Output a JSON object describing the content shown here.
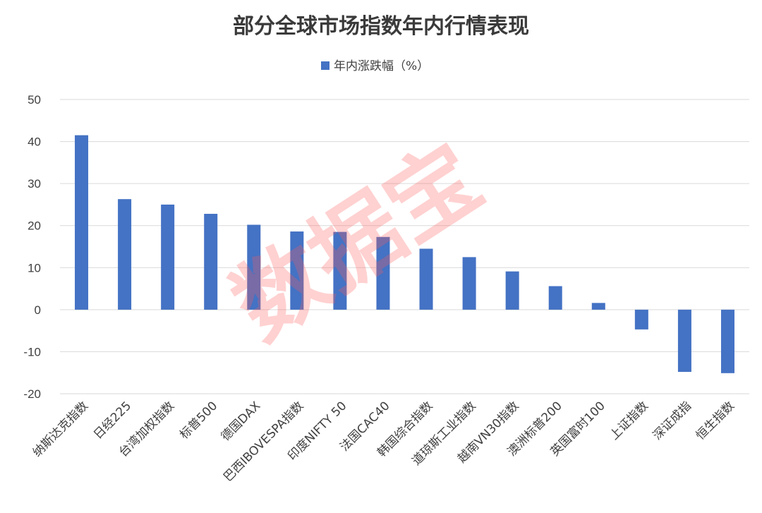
{
  "chart_data": {
    "type": "bar",
    "title": "部分全球市场指数年内行情表现",
    "xlabel": "",
    "ylabel": "",
    "ylim": [
      -20,
      50
    ],
    "yticks": [
      50,
      40,
      30,
      20,
      10,
      0,
      -10,
      -20
    ],
    "grid": true,
    "legend_position": "top-center",
    "bar_color": "#4472c4",
    "categories": [
      "纳斯达克指数",
      "日经225",
      "台湾加权指数",
      "标普500",
      "德国DAX",
      "巴西IBOVESPA指数",
      "印度NIFTY 50",
      "法国CAC40",
      "韩国综合指数",
      "道琼斯工业指数",
      "越南VN30指数",
      "澳洲标普200",
      "英国富时100",
      "上证指数",
      "深证成指",
      "恒生指数"
    ],
    "series": [
      {
        "name": "年内涨跌幅（%）",
        "values": [
          41.5,
          26.3,
          25.0,
          22.8,
          20.2,
          18.6,
          18.5,
          17.3,
          14.5,
          12.5,
          9.1,
          5.6,
          1.6,
          -4.7,
          -14.8,
          -15.1
        ]
      }
    ]
  },
  "watermark": {
    "text": "数据宝",
    "color": "#ff5a5a"
  }
}
